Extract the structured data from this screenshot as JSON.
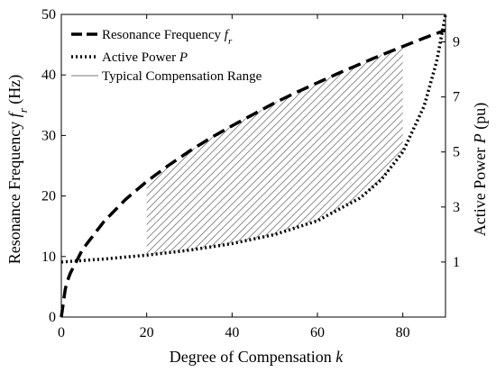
{
  "chart_data": {
    "type": "line",
    "title": "",
    "xlabel": "Degree of Compensation k",
    "xlabel_parts": {
      "text": "Degree of Compensation ",
      "var": "k"
    },
    "ylabel_left": "Resonance Frequency f_r (Hz)",
    "ylabel_left_parts": {
      "text": "Resonance Frequency ",
      "var": "f",
      "sub": "r",
      "unit": " (Hz)"
    },
    "ylabel_right": "Active Power P (pu)",
    "ylabel_right_parts": {
      "text": "Active Power ",
      "var": "P",
      "unit": " (pu)"
    },
    "xlim": [
      0,
      90
    ],
    "ylim_left": [
      0,
      50
    ],
    "ylim_right": [
      -1.0,
      10.0
    ],
    "x_ticks": [
      "0",
      "20",
      "40",
      "60",
      "80"
    ],
    "y_left_ticks": [
      "0",
      "10",
      "20",
      "30",
      "40",
      "50"
    ],
    "y_right_ticks": [
      "1",
      "3",
      "5",
      "7",
      "9"
    ],
    "grid": false,
    "legend_position": "top-left",
    "series": [
      {
        "name": "Resonance Frequency f_r",
        "legend_parts": {
          "text": "Resonance Frequency ",
          "var": "f",
          "sub": "r"
        },
        "axis": "left",
        "style": "dashed",
        "x": [
          0,
          1,
          2,
          5,
          10,
          15,
          20,
          25,
          30,
          35,
          40,
          45,
          50,
          55,
          60,
          65,
          70,
          75,
          80,
          85,
          90
        ],
        "y": [
          0,
          5.0,
          7.1,
          11.2,
          15.8,
          19.4,
          22.4,
          25.0,
          27.4,
          29.6,
          31.6,
          33.5,
          35.4,
          37.1,
          38.7,
          40.3,
          41.8,
          43.3,
          44.7,
          46.1,
          47.4
        ]
      },
      {
        "name": "Active Power P",
        "legend_parts": {
          "text": "Active Power ",
          "var": "P"
        },
        "axis": "right",
        "style": "dotted",
        "x": [
          0,
          10,
          20,
          30,
          40,
          50,
          60,
          70,
          75,
          80,
          85,
          88,
          90
        ],
        "y": [
          1.0,
          1.11,
          1.25,
          1.43,
          1.67,
          2.0,
          2.5,
          3.33,
          4.0,
          5.0,
          6.67,
          8.33,
          10.0
        ]
      }
    ],
    "shaded_region": {
      "name": "Typical Compensation Range",
      "pattern": "diagonal-hatch",
      "x_range": [
        20,
        80
      ]
    }
  }
}
